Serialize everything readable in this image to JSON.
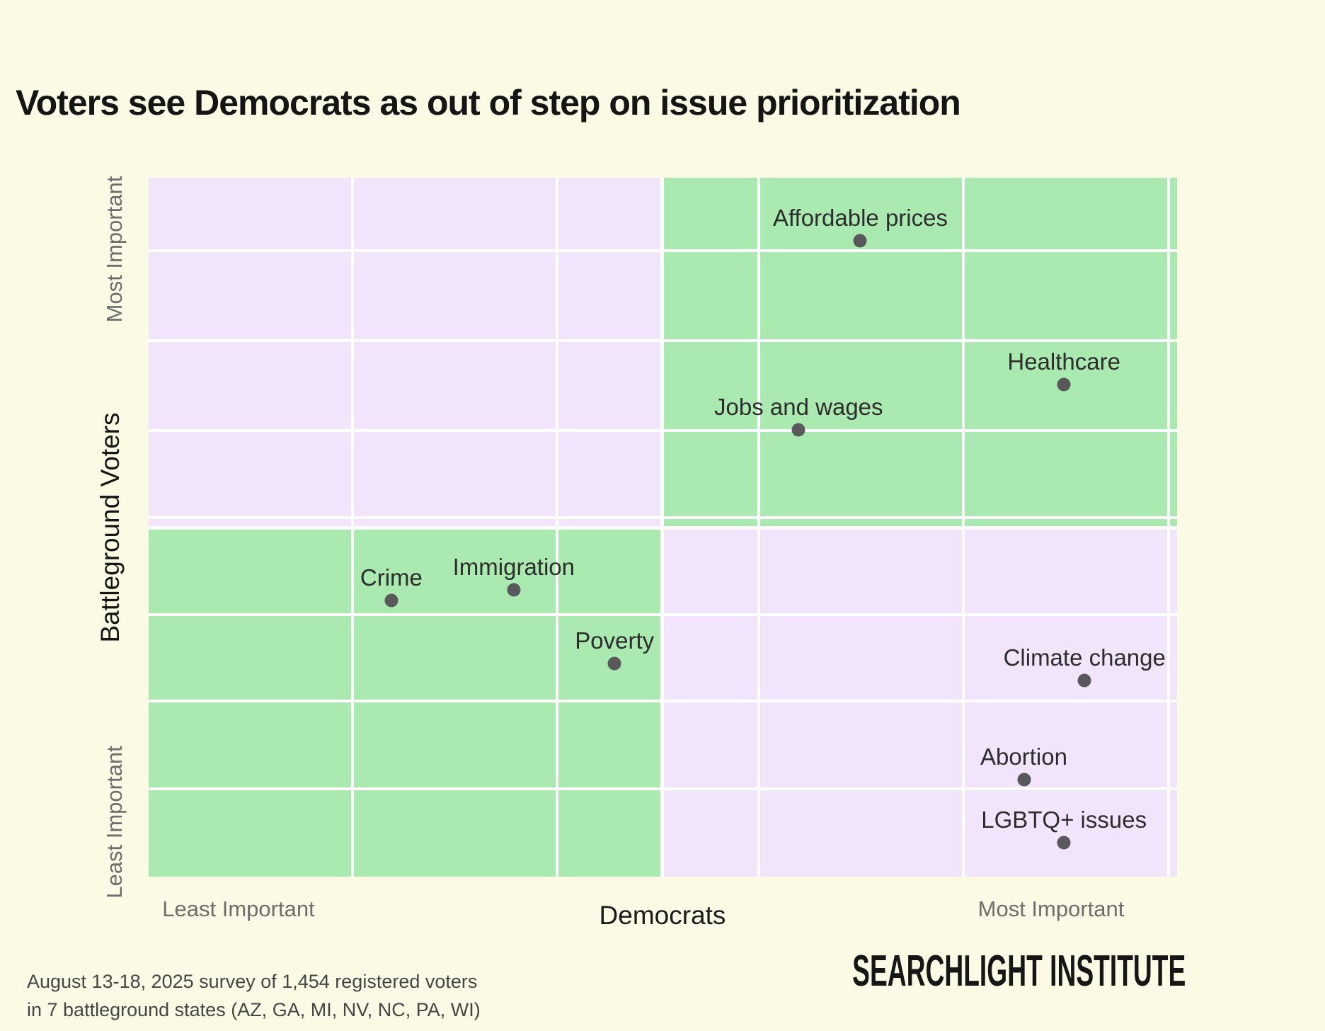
{
  "title": "Voters see Democrats as out of step on issue prioritization",
  "chart_data": {
    "type": "scatter",
    "title": "Voters see Democrats as out of step on issue prioritization",
    "x_axis": {
      "label": "Democrats",
      "min_label": "Least Important",
      "max_label": "Most Important"
    },
    "y_axis": {
      "label": "Battleground Voters",
      "min_label": "Least Important",
      "max_label": "Most Important"
    },
    "legend": "none",
    "grid": "on",
    "quadrant_colors": {
      "top_left": "#f2e4fa",
      "top_right": "#aaeab0",
      "bottom_left": "#aaeab0",
      "bottom_right": "#f2e4fa",
      "gridline": "#ffffff",
      "background": "#fafae5",
      "dot": "#59585c"
    },
    "layout": {
      "v_gridlines_pct": [
        19.8,
        39.7,
        59.3,
        79.2,
        99.2
      ],
      "h_gridlines_pct": [
        10.4,
        23.3,
        36.2,
        48.6,
        62.5,
        74.9,
        87.4
      ],
      "v_boundary_pct": 49.9,
      "h_boundary_pct": 50.0
    },
    "points": [
      {
        "label": "Affordable prices",
        "x_pct": 69.2,
        "y_pct": 9.0,
        "democrats_importance": 0.69,
        "battleground_importance": 0.91
      },
      {
        "label": "Healthcare",
        "x_pct": 89.0,
        "y_pct": 29.6,
        "democrats_importance": 0.89,
        "battleground_importance": 0.7
      },
      {
        "label": "Jobs and wages",
        "x_pct": 63.2,
        "y_pct": 36.1,
        "democrats_importance": 0.63,
        "battleground_importance": 0.64
      },
      {
        "label": "Crime",
        "x_pct": 23.6,
        "y_pct": 60.5,
        "democrats_importance": 0.24,
        "battleground_importance": 0.4
      },
      {
        "label": "Immigration",
        "x_pct": 35.5,
        "y_pct": 59.0,
        "democrats_importance": 0.36,
        "battleground_importance": 0.41
      },
      {
        "label": "Poverty",
        "x_pct": 45.3,
        "y_pct": 69.5,
        "democrats_importance": 0.45,
        "battleground_importance": 0.31
      },
      {
        "label": "Climate change",
        "x_pct": 91.0,
        "y_pct": 71.9,
        "democrats_importance": 0.91,
        "battleground_importance": 0.28
      },
      {
        "label": "Abortion",
        "x_pct": 85.1,
        "y_pct": 86.1,
        "democrats_importance": 0.85,
        "battleground_importance": 0.14
      },
      {
        "label": "LGBTQ+ issues",
        "x_pct": 89.0,
        "y_pct": 95.1,
        "democrats_importance": 0.89,
        "battleground_importance": 0.05
      }
    ]
  },
  "footer": {
    "source_line1": "August 13-18, 2025 survey of 1,454 registered voters",
    "source_line2": "in 7 battleground states (AZ, GA, MI, NV, NC, PA, WI)",
    "logo_text": "SEARCHLIGHT INSTITUTE"
  }
}
